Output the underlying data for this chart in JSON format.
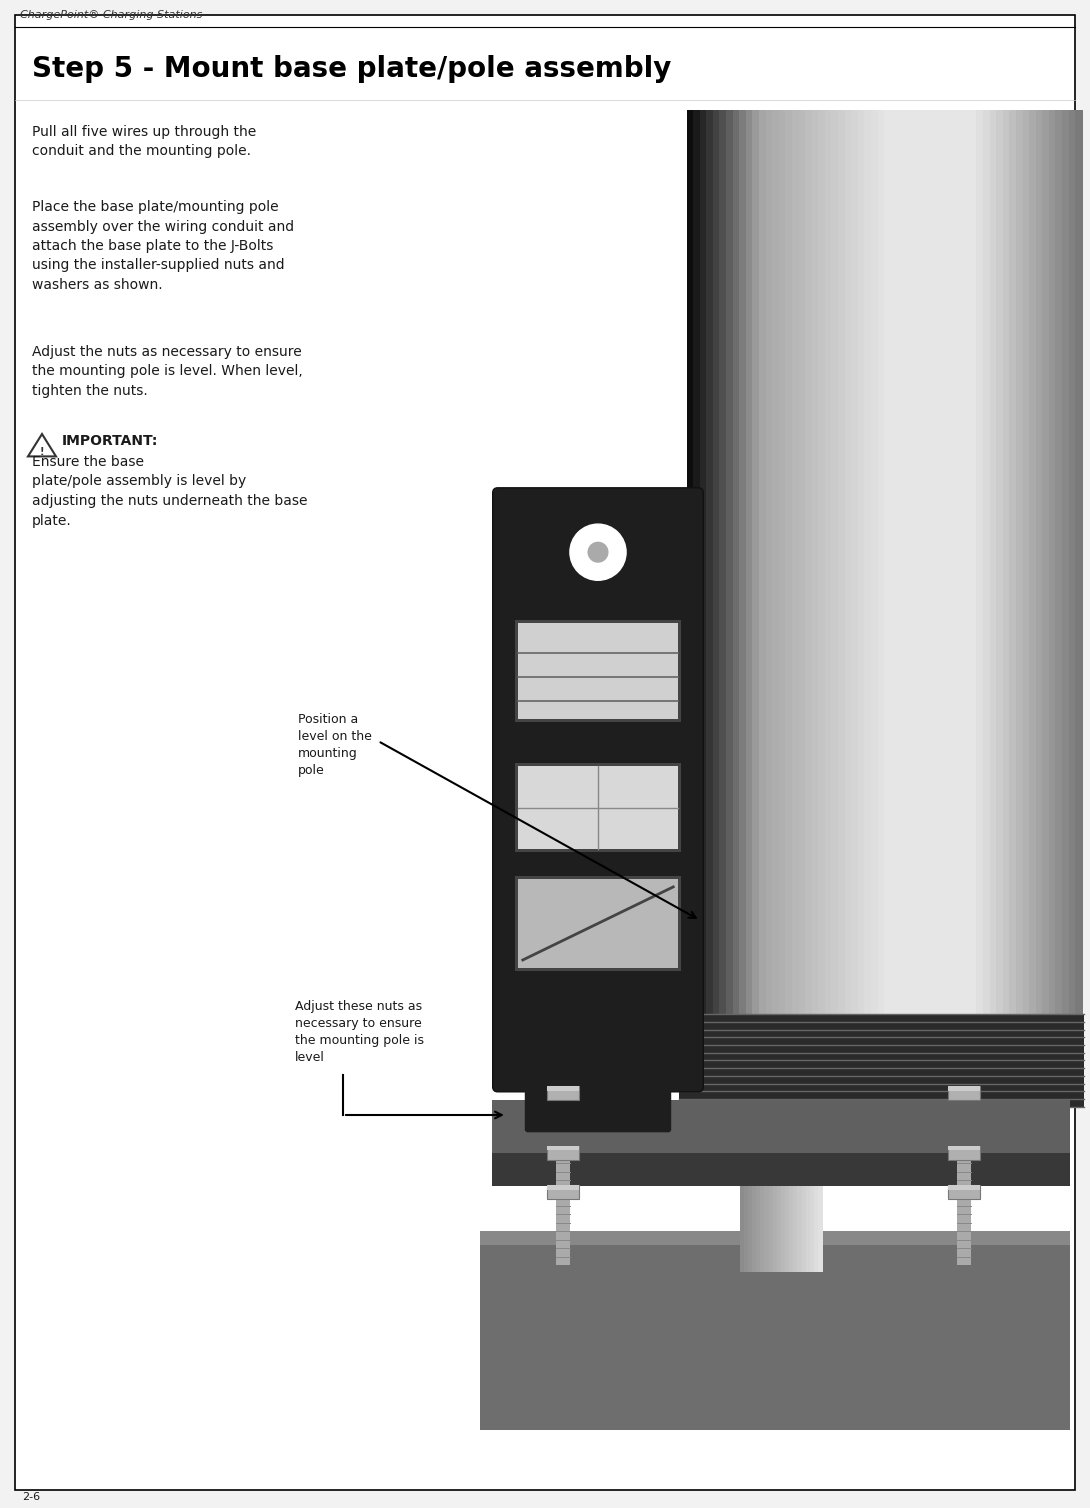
{
  "page_title": "ChargePoint® Charging Stations",
  "page_number": "2-6",
  "step_title": "Step 5 - Mount base plate/pole assembly",
  "para1": "Pull all five wires up through the\nconduit and the mounting pole.",
  "para2": "Place the base plate/mounting pole\nassembly over the wiring conduit and\nattach the base plate to the J-Bolts\nusing the installer-supplied nuts and\nwashers as shown.",
  "para3": "Adjust the nuts as necessary to ensure\nthe mounting pole is level. When level,\ntighten the nuts.",
  "important_label": "IMPORTANT:",
  "important_text": "Ensure the base\nplate/pole assembly is level by\nadjusting the nuts underneath the base\nplate.",
  "annotation1_text": "Position a\nlevel on the\nmounting\npole",
  "annotation2_text": "Adjust these nuts as\nnecessary to ensure\nthe mounting pole is\nlevel",
  "bg_color": "#f2f2f2",
  "page_white": "#ffffff",
  "border_color": "#000000",
  "title_color": "#000000",
  "text_color": "#1a1a1a",
  "step_title_fontsize": 20,
  "body_fontsize": 10,
  "header_fontsize": 8,
  "annotation_fontsize": 9
}
